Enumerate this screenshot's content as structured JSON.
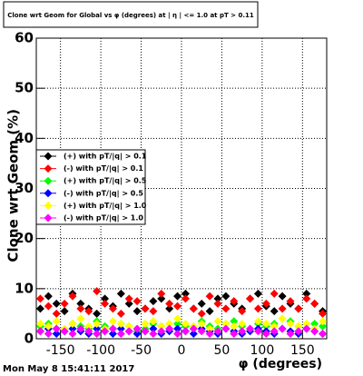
{
  "chart_data": {
    "type": "scatter",
    "title": "Clone wrt Geom for Global vs φ (degrees) at | η | <= 1.0 at pT > 0.11",
    "x_label": "φ (degrees)",
    "y_label": "Clone wrt Geom (%)",
    "timestamp": "Mon May  8 15:41:11 2017",
    "x": [
      -175,
      -165,
      -155,
      -145,
      -135,
      -125,
      -115,
      -105,
      -95,
      -85,
      -75,
      -65,
      -55,
      -45,
      -35,
      -25,
      -15,
      -5,
      5,
      15,
      25,
      35,
      45,
      55,
      65,
      75,
      85,
      95,
      105,
      115,
      125,
      135,
      145,
      155,
      165,
      175
    ],
    "xlim": [
      -180,
      180
    ],
    "xticks": [
      -150,
      -100,
      -50,
      0,
      50,
      100,
      150
    ],
    "ylim": [
      0,
      60
    ],
    "yticks": [
      0,
      10,
      20,
      30,
      40,
      50,
      60
    ],
    "grid": true,
    "series": [
      {
        "name": "(+) with pT/|q| > 0.1",
        "color": "#000000",
        "values": [
          6,
          8.5,
          7,
          5.5,
          9,
          7,
          6,
          5,
          8,
          6.5,
          9,
          7,
          5.5,
          6,
          7.5,
          8,
          6,
          8.5,
          9,
          6,
          7,
          5.5,
          8,
          8.5,
          7,
          6,
          8,
          9,
          6.5,
          5.5,
          8.5,
          7,
          6,
          9,
          7,
          5.5
        ]
      },
      {
        "name": "(-) with pT/|q| > 0.1",
        "color": "#ff0000",
        "values": [
          8,
          6.5,
          5,
          7,
          8.5,
          6,
          5.5,
          9.5,
          7,
          6,
          5,
          8,
          7.5,
          6,
          5.5,
          9,
          7,
          6.5,
          8,
          6,
          5,
          8.5,
          7,
          6,
          7.5,
          5.5,
          8,
          6,
          7,
          9,
          6,
          7.5,
          6,
          8,
          7,
          5
        ]
      },
      {
        "name": "(+) with pT/|q| > 0.5",
        "color": "#00ff00",
        "values": [
          2.5,
          3,
          2,
          1.5,
          3,
          2.5,
          2,
          3.5,
          2.5,
          2,
          3,
          2.5,
          1.5,
          2,
          3,
          2.5,
          2,
          3,
          2.5,
          2,
          3.5,
          2.5,
          2,
          3,
          3.5,
          2.5,
          2,
          3,
          2.5,
          3,
          2,
          3.5,
          2.5,
          2,
          3,
          2.5
        ]
      },
      {
        "name": "(-) with pT/|q| > 0.5",
        "color": "#0000ff",
        "values": [
          1.5,
          2,
          1,
          1.5,
          2,
          1.5,
          1,
          2,
          1.5,
          1,
          2,
          1.5,
          1,
          1.5,
          2,
          1,
          1.5,
          2,
          1.5,
          1,
          2,
          1.5,
          1,
          2,
          1.5,
          1,
          1.5,
          2,
          1.5,
          1,
          2,
          1.5,
          1,
          2,
          1.5,
          1
        ]
      },
      {
        "name": "(+) with pT/|q| > 1.0",
        "color": "#ffff00",
        "values": [
          3,
          2.5,
          3.5,
          2,
          3,
          4,
          2.5,
          3,
          2,
          3.5,
          3,
          2.5,
          2,
          3,
          3.5,
          2.5,
          3,
          4,
          3,
          2.5,
          3,
          2,
          3.5,
          3,
          2.5,
          3,
          2,
          3.5,
          3,
          2.5,
          4,
          3,
          2.5,
          3,
          2,
          3.5
        ]
      },
      {
        "name": "(-) with pT/|q| > 1.0",
        "color": "#ff00ff",
        "values": [
          1.5,
          1,
          2,
          1.5,
          1,
          2,
          1.5,
          1,
          1.5,
          2,
          1,
          1.5,
          2,
          1.5,
          1,
          1.5,
          2,
          1,
          1.5,
          2,
          1.5,
          1,
          1.5,
          2,
          1,
          1.5,
          2,
          1.5,
          1,
          1.5,
          2,
          1,
          1.5,
          2,
          1.5,
          1
        ]
      }
    ]
  }
}
